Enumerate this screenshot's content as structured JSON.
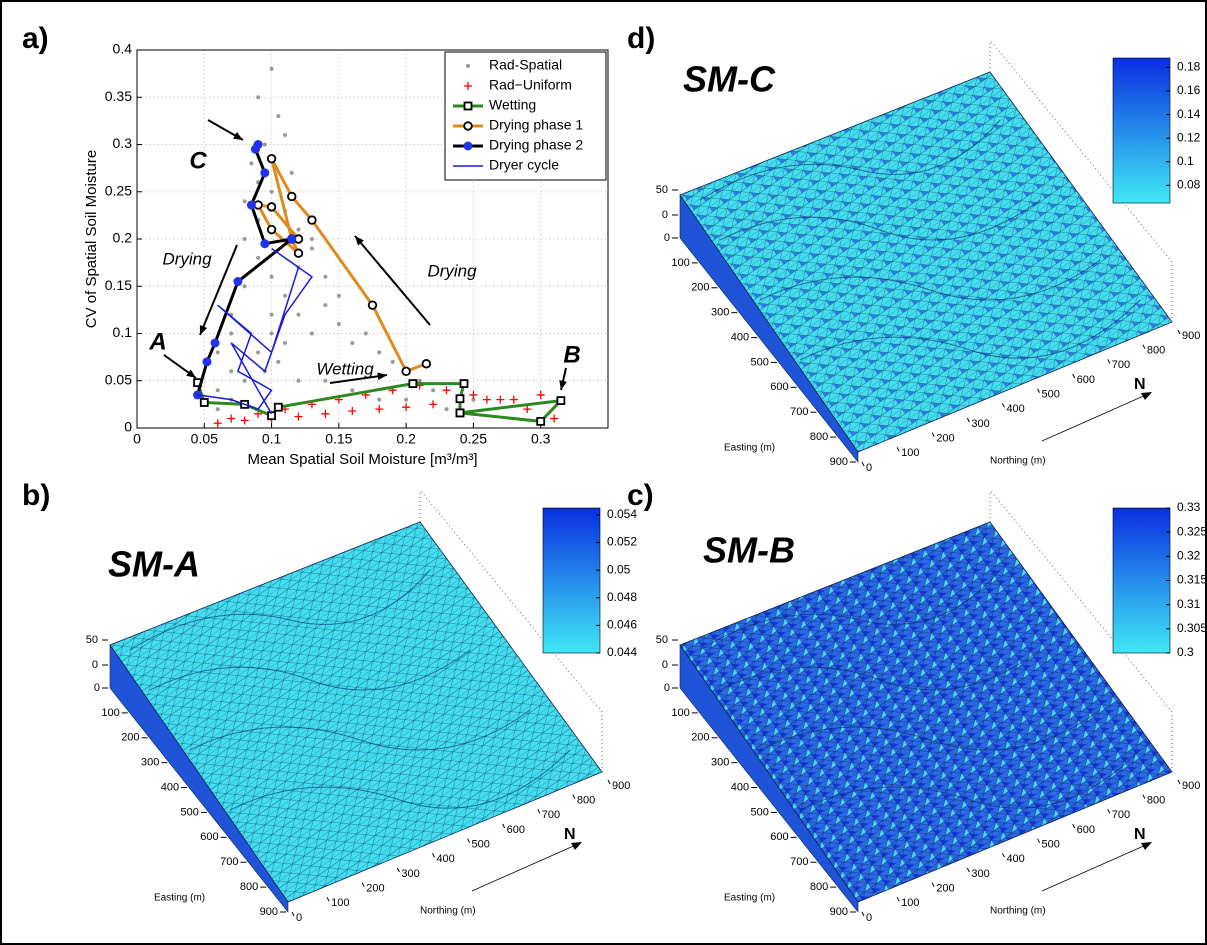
{
  "chart_data": [
    {
      "type": "scatter",
      "panel_label": "a)",
      "xlabel": "Mean Spatial Soil Moisture [m³/m³]",
      "ylabel": "CV of Spatial Soil Moisture",
      "xlim": [
        0,
        0.35
      ],
      "ylim": [
        0,
        0.4
      ],
      "xticks": [
        0,
        0.05,
        0.1,
        0.15,
        0.2,
        0.25,
        0.3
      ],
      "yticks": [
        0,
        0.05,
        0.1,
        0.15,
        0.2,
        0.25,
        0.3,
        0.35,
        0.4
      ],
      "grid": true,
      "legend": "upper right",
      "series": [
        {
          "name": "Rad-Spatial",
          "color": "#999999",
          "marker": "dot",
          "line": false,
          "x": [
            0.06,
            0.07,
            0.08,
            0.09,
            0.1,
            0.11,
            0.12,
            0.13,
            0.14,
            0.15,
            0.16,
            0.17,
            0.18,
            0.19,
            0.2,
            0.21,
            0.22,
            0.07,
            0.08,
            0.09,
            0.1,
            0.11,
            0.12,
            0.13,
            0.14,
            0.15,
            0.09,
            0.1,
            0.11,
            0.12,
            0.13,
            0.085,
            0.095,
            0.105,
            0.115,
            0.08,
            0.09,
            0.1,
            0.11,
            0.06,
            0.07,
            0.08,
            0.05,
            0.06,
            0.07,
            0.09,
            0.1,
            0.095,
            0.105,
            0.12,
            0.14,
            0.16,
            0.18,
            0.2,
            0.23,
            0.25
          ],
          "values": [
            0.04,
            0.06,
            0.05,
            0.08,
            0.1,
            0.09,
            0.12,
            0.1,
            0.13,
            0.11,
            0.09,
            0.1,
            0.08,
            0.07,
            0.06,
            0.05,
            0.04,
            0.12,
            0.15,
            0.18,
            0.16,
            0.14,
            0.17,
            0.19,
            0.16,
            0.14,
            0.22,
            0.25,
            0.23,
            0.21,
            0.2,
            0.28,
            0.3,
            0.33,
            0.27,
            0.24,
            0.35,
            0.38,
            0.31,
            0.08,
            0.1,
            0.2,
            0.03,
            0.02,
            0.03,
            0.26,
            0.12,
            0.06,
            0.07,
            0.05,
            0.05,
            0.04,
            0.03,
            0.03,
            0.02,
            0.03
          ]
        },
        {
          "name": "Rad−Uniform",
          "color": "#ff0000",
          "marker": "plus",
          "line": false,
          "x": [
            0.06,
            0.08,
            0.1,
            0.12,
            0.14,
            0.16,
            0.18,
            0.2,
            0.22,
            0.24,
            0.26,
            0.28,
            0.3,
            0.07,
            0.09,
            0.11,
            0.13,
            0.15,
            0.17,
            0.19,
            0.21,
            0.23,
            0.25,
            0.27,
            0.29,
            0.31
          ],
          "values": [
            0.005,
            0.008,
            0.01,
            0.012,
            0.015,
            0.018,
            0.02,
            0.022,
            0.025,
            0.028,
            0.03,
            0.03,
            0.035,
            0.01,
            0.015,
            0.02,
            0.025,
            0.03,
            0.035,
            0.04,
            0.045,
            0.04,
            0.035,
            0.03,
            0.02,
            0.01
          ]
        },
        {
          "name": "Wetting",
          "color": "#2a8a1e",
          "marker": "square",
          "marker_color": "#000000",
          "line": true,
          "x": [
            0.045,
            0.05,
            0.08,
            0.1,
            0.105,
            0.205,
            0.243,
            0.24,
            0.24,
            0.315,
            0.3,
            0.24
          ],
          "values": [
            0.048,
            0.027,
            0.025,
            0.013,
            0.022,
            0.047,
            0.047,
            0.031,
            0.016,
            0.029,
            0.007,
            0.016
          ]
        },
        {
          "name": "Drying phase 1",
          "color": "#e08a1e",
          "marker": "circle",
          "marker_color": "#000000",
          "line": true,
          "x": [
            0.215,
            0.2,
            0.175,
            0.13,
            0.115,
            0.1,
            0.115,
            0.12,
            0.1,
            0.09,
            0.1,
            0.12
          ],
          "values": [
            0.068,
            0.06,
            0.13,
            0.22,
            0.245,
            0.285,
            0.2,
            0.185,
            0.21,
            0.236,
            0.234,
            0.2
          ]
        },
        {
          "name": "Drying phase 2",
          "color": "#000000",
          "marker": "filled",
          "marker_color": "#2233ee",
          "line": true,
          "x": [
            0.09,
            0.088,
            0.095,
            0.085,
            0.095,
            0.115,
            0.075,
            0.058,
            0.052,
            0.045
          ],
          "values": [
            0.3,
            0.295,
            0.27,
            0.236,
            0.195,
            0.2,
            0.155,
            0.09,
            0.07,
            0.035
          ]
        },
        {
          "name": "Dryer cycle",
          "color": "#1a1adc",
          "marker": "none",
          "line": true,
          "x": [
            0.045,
            0.07,
            0.09,
            0.1,
            0.075,
            0.085,
            0.06,
            0.1,
            0.12,
            0.1,
            0.13,
            0.11,
            0.095,
            0.07,
            0.1
          ],
          "values": [
            0.035,
            0.03,
            0.02,
            0.04,
            0.06,
            0.1,
            0.13,
            0.08,
            0.17,
            0.19,
            0.16,
            0.12,
            0.06,
            0.09,
            0.015
          ]
        }
      ],
      "annotations": [
        {
          "text": "C"
        },
        {
          "text": "A"
        },
        {
          "text": "B"
        },
        {
          "text": "Drying"
        },
        {
          "text": "Drying"
        },
        {
          "text": "Wetting"
        }
      ]
    },
    {
      "type": "surface",
      "panel_label": "b)",
      "title": "SM-A",
      "xlabel": "Easting (m)",
      "ylabel": "Northing (m)",
      "north_label": "N",
      "xticks": [
        0,
        100,
        200,
        300,
        400,
        500,
        600,
        700,
        800,
        900
      ],
      "yticks": [
        0,
        100,
        200,
        300,
        400,
        500,
        600,
        700,
        800,
        900
      ],
      "zlim": [
        0,
        50
      ],
      "zticks": [
        0,
        50
      ],
      "colorbar": {
        "clim": [
          0.044,
          0.0545
        ],
        "ticks": [
          0.044,
          0.046,
          0.048,
          0.05,
          0.052,
          0.054
        ],
        "colormap": [
          "#3fe8f6",
          "#0a2ee0"
        ]
      }
    },
    {
      "type": "surface",
      "panel_label": "c)",
      "title": "SM-B",
      "xlabel": "Easting (m)",
      "ylabel": "Northing (m)",
      "north_label": "N",
      "xticks": [
        0,
        100,
        200,
        300,
        400,
        500,
        600,
        700,
        800,
        900
      ],
      "yticks": [
        0,
        100,
        200,
        300,
        400,
        500,
        600,
        700,
        800,
        900
      ],
      "zlim": [
        0,
        50
      ],
      "zticks": [
        0,
        50
      ],
      "colorbar": {
        "clim": [
          0.3,
          0.33
        ],
        "ticks": [
          0.3,
          0.305,
          0.31,
          0.315,
          0.32,
          0.325,
          0.33
        ],
        "colormap": [
          "#3fe8f6",
          "#0a2ee0"
        ]
      }
    },
    {
      "type": "surface",
      "panel_label": "d)",
      "title": "SM-C",
      "xlabel": "Easting (m)",
      "ylabel": "Northing (m)",
      "north_label": "N",
      "xticks": [
        0,
        100,
        200,
        300,
        400,
        500,
        600,
        700,
        800,
        900
      ],
      "yticks": [
        0,
        100,
        200,
        300,
        400,
        500,
        600,
        700,
        800,
        900
      ],
      "zlim": [
        0,
        50
      ],
      "zticks": [
        0,
        50
      ],
      "colorbar": {
        "clim": [
          0.065,
          0.188
        ],
        "ticks": [
          0.08,
          0.1,
          0.12,
          0.14,
          0.16,
          0.18
        ],
        "colormap": [
          "#3fe8f6",
          "#0a2ee0"
        ]
      }
    }
  ]
}
